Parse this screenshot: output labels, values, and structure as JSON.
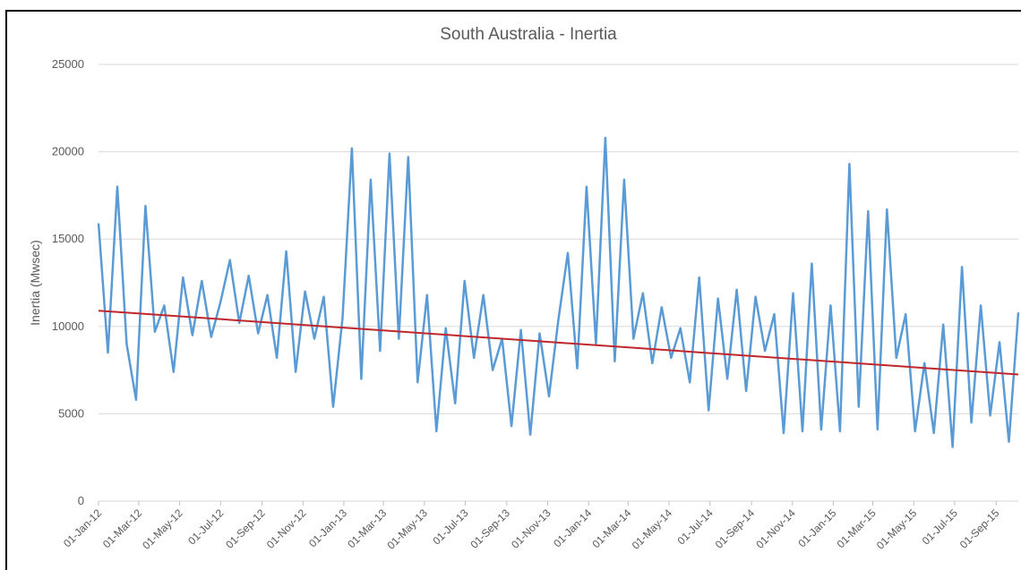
{
  "chart_data": {
    "type": "line",
    "title": "South Australia - Inertia",
    "y_label": "Inertia (Mwsec)",
    "xlim": [
      "01-Jan-12",
      "04-Oct-15"
    ],
    "xticks": [
      "01-Jan-12",
      "01-Mar-12",
      "01-May-12",
      "01-Jul-12",
      "01-Sep-12",
      "01-Nov-12",
      "01-Jan-13",
      "01-Mar-13",
      "01-May-13",
      "01-Jul-13",
      "01-Sep-13",
      "01-Nov-13",
      "01-Jan-14",
      "01-Mar-14",
      "01-May-14",
      "01-Jul-14",
      "01-Sep-14",
      "01-Nov-14",
      "01-Jan-15",
      "01-Mar-15",
      "01-May-15",
      "01-Jul-15",
      "01-Sep-15"
    ],
    "ylim": [
      0,
      25000
    ],
    "yticks": [
      0,
      5000,
      10000,
      15000,
      20000,
      25000
    ],
    "grid": true,
    "series": [
      {
        "color": "#5b9bd5",
        "x": [
          "01-Jan-12",
          "15-Jan-12",
          "29-Jan-12",
          "12-Feb-12",
          "26-Feb-12",
          "11-Mar-12",
          "25-Mar-12",
          "08-Apr-12",
          "22-Apr-12",
          "06-May-12",
          "20-May-12",
          "03-Jun-12",
          "17-Jun-12",
          "01-Jul-12",
          "15-Jul-12",
          "29-Jul-12",
          "12-Aug-12",
          "26-Aug-12",
          "09-Sep-12",
          "23-Sep-12",
          "07-Oct-12",
          "21-Oct-12",
          "04-Nov-12",
          "18-Nov-12",
          "02-Dec-12",
          "16-Dec-12",
          "30-Dec-12",
          "13-Jan-13",
          "27-Jan-13",
          "10-Feb-13",
          "24-Feb-13",
          "10-Mar-13",
          "24-Mar-13",
          "07-Apr-13",
          "21-Apr-13",
          "05-May-13",
          "19-May-13",
          "02-Jun-13",
          "16-Jun-13",
          "30-Jun-13",
          "14-Jul-13",
          "28-Jul-13",
          "11-Aug-13",
          "25-Aug-13",
          "08-Sep-13",
          "22-Sep-13",
          "06-Oct-13",
          "20-Oct-13",
          "03-Nov-13",
          "17-Nov-13",
          "01-Dec-13",
          "15-Dec-13",
          "29-Dec-13",
          "12-Jan-14",
          "26-Jan-14",
          "09-Feb-14",
          "23-Feb-14",
          "09-Mar-14",
          "23-Mar-14",
          "06-Apr-14",
          "20-Apr-14",
          "04-May-14",
          "18-May-14",
          "01-Jun-14",
          "15-Jun-14",
          "29-Jun-14",
          "13-Jul-14",
          "27-Jul-14",
          "10-Aug-14",
          "24-Aug-14",
          "07-Sep-14",
          "21-Sep-14",
          "05-Oct-14",
          "19-Oct-14",
          "02-Nov-14",
          "16-Nov-14",
          "30-Nov-14",
          "14-Dec-14",
          "28-Dec-14",
          "11-Jan-15",
          "25-Jan-15",
          "08-Feb-15",
          "22-Feb-15",
          "08-Mar-15",
          "22-Mar-15",
          "05-Apr-15",
          "19-Apr-15",
          "03-May-15",
          "17-May-15",
          "31-May-15",
          "14-Jun-15",
          "28-Jun-15",
          "12-Jul-15",
          "26-Jul-15",
          "09-Aug-15",
          "23-Aug-15",
          "06-Sep-15",
          "20-Sep-15",
          "04-Oct-15"
        ],
        "values": [
          15900,
          8500,
          18000,
          9000,
          5800,
          16900,
          9700,
          11200,
          7400,
          12800,
          9500,
          12600,
          9400,
          11400,
          13800,
          10200,
          12900,
          9600,
          11800,
          8200,
          14300,
          7400,
          12000,
          9300,
          11700,
          5400,
          10500,
          20200,
          7000,
          18400,
          8600,
          19900,
          9300,
          19700,
          6800,
          11800,
          4000,
          9900,
          5600,
          12600,
          8200,
          11800,
          7500,
          9300,
          4300,
          9800,
          3800,
          9600,
          6000,
          10400,
          14200,
          7600,
          18000,
          9000,
          20800,
          8000,
          18400,
          9300,
          11900,
          7900,
          11100,
          8200,
          9900,
          6800,
          12800,
          5200,
          11600,
          7000,
          12100,
          6300,
          11700,
          8600,
          10700,
          3900,
          11900,
          4000,
          13600,
          4100,
          11200,
          4000,
          19300,
          5400,
          16600,
          4100,
          16700,
          8200,
          10700,
          4000,
          7900,
          3900,
          10100,
          3100,
          13400,
          4500,
          11200,
          4900,
          9100,
          3400,
          10800
        ]
      },
      {
        "color": "#c0272d",
        "x": [
          "01-Jan-12",
          "04-Oct-15"
        ],
        "values": [
          10900,
          7250
        ]
      }
    ]
  }
}
